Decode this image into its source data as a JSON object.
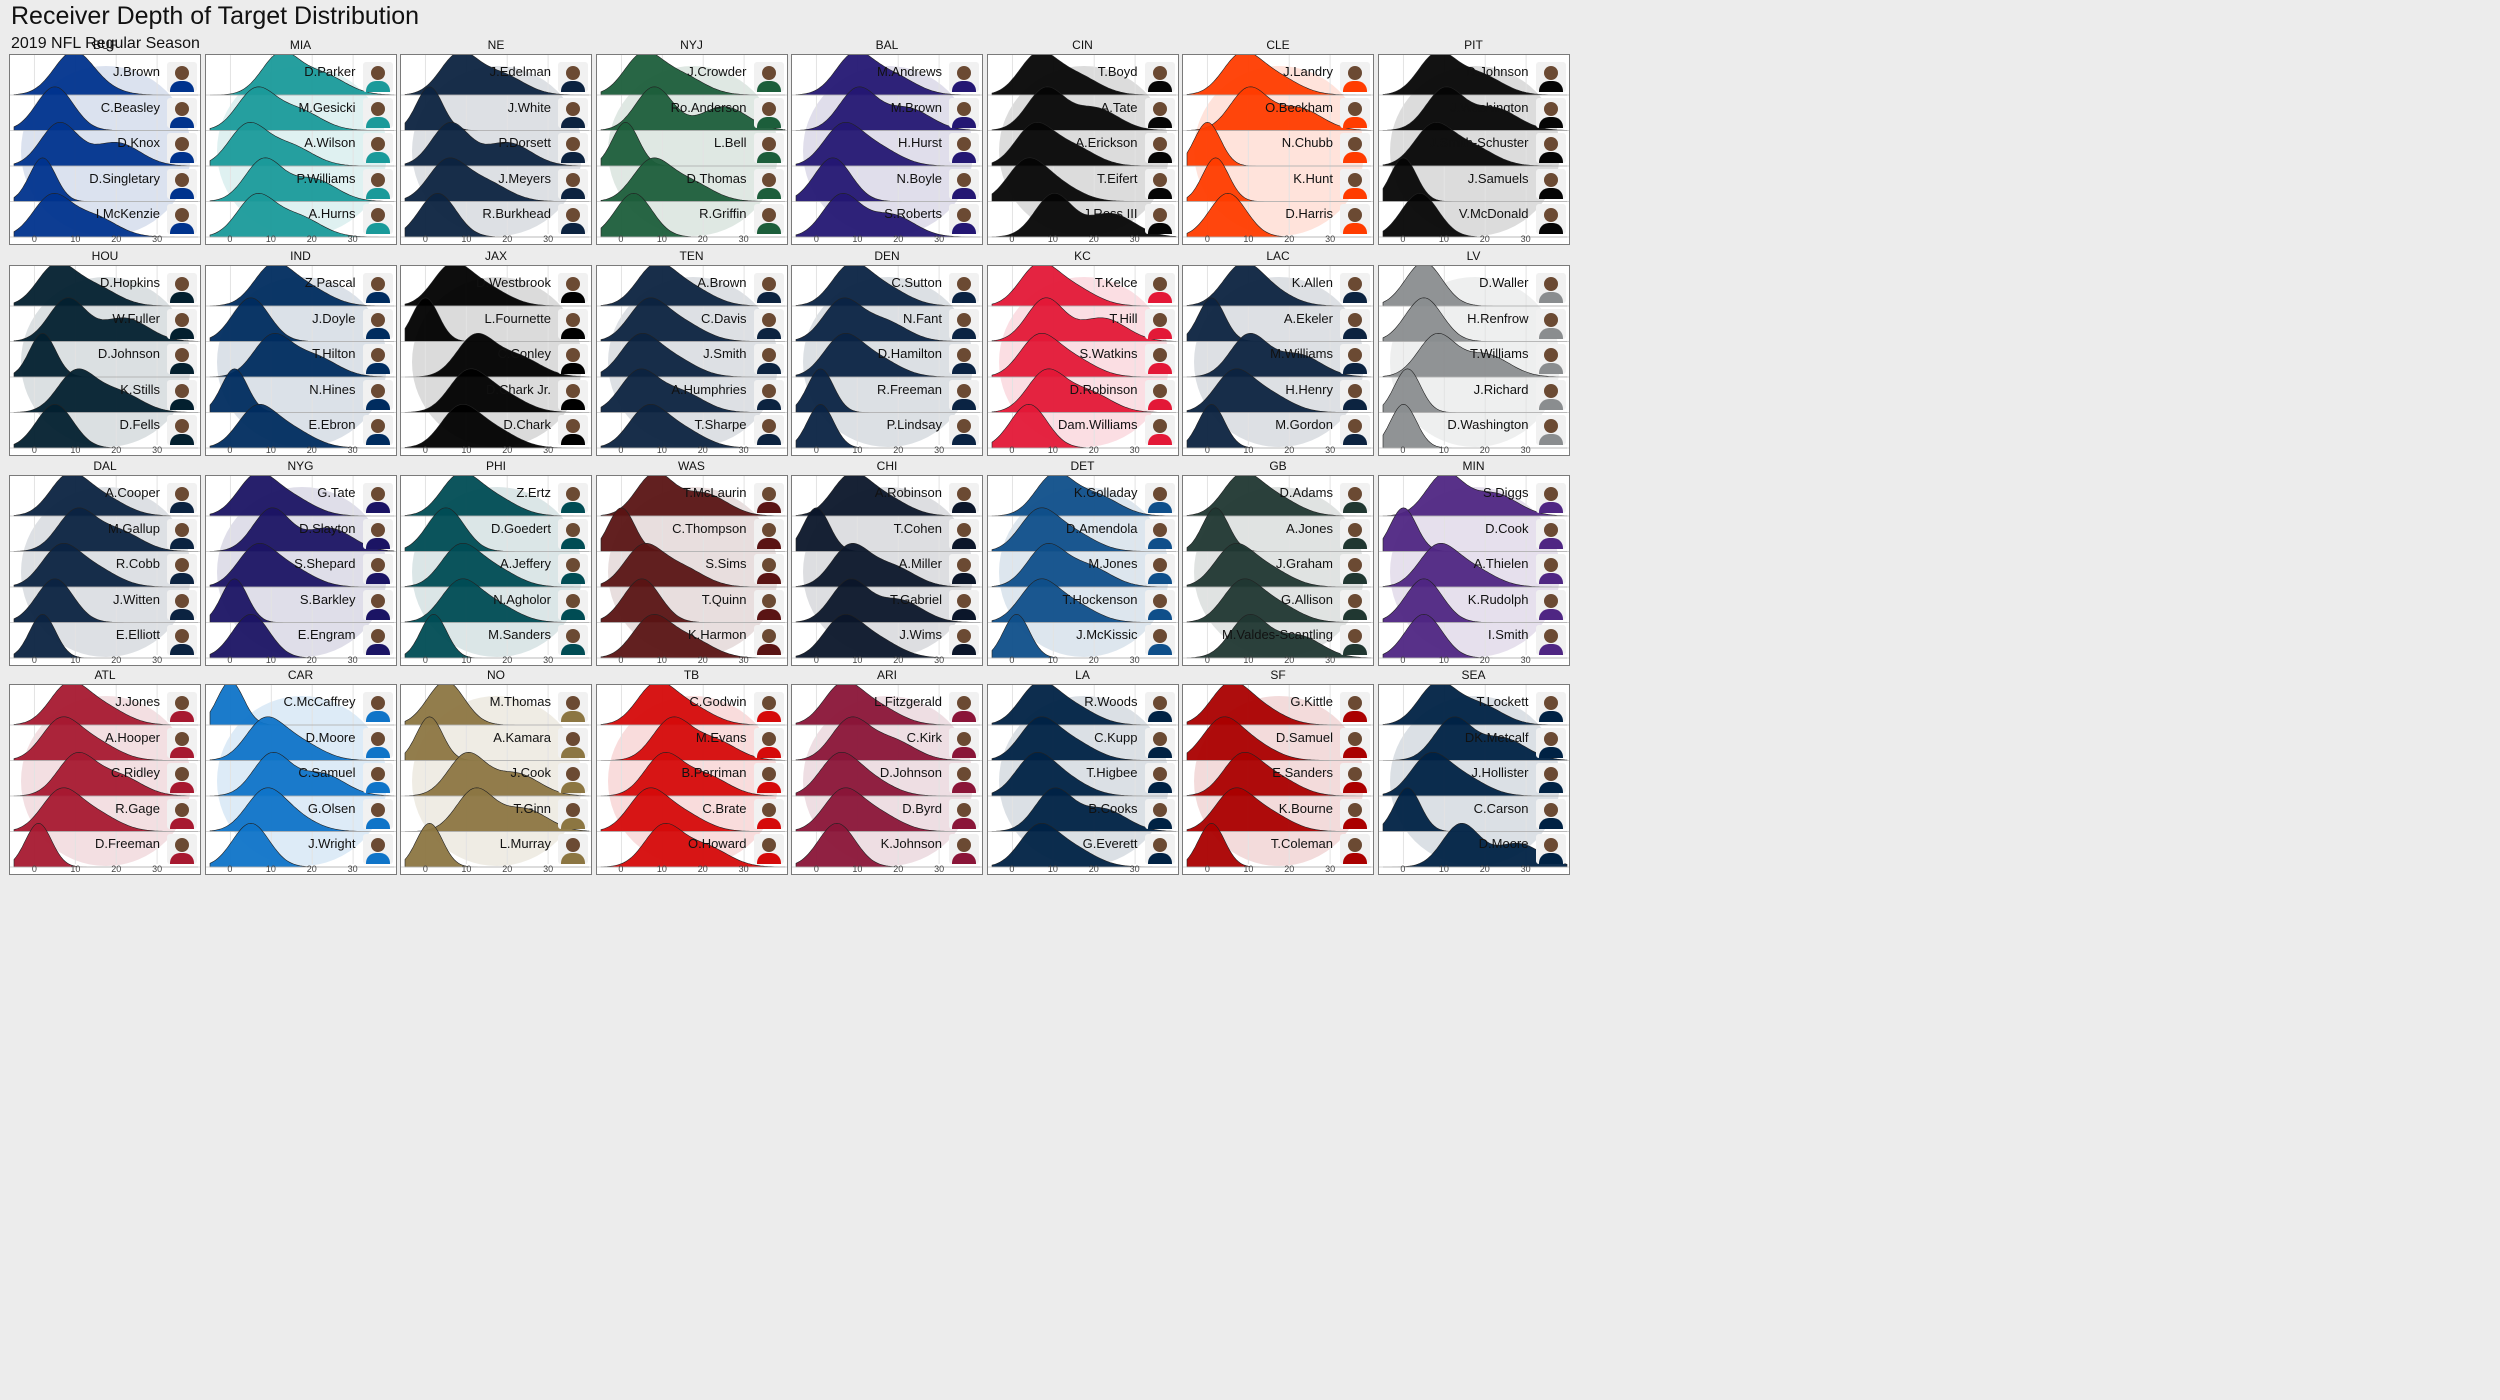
{
  "title": "Receiver Depth of Target Distribution",
  "subtitle": "2019 NFL Regular Season",
  "chart_data": {
    "type": "area",
    "kind": "ridgeline density",
    "xlim": [
      -5,
      40
    ],
    "x_ticks": [
      0,
      10,
      20,
      30
    ],
    "grid": true,
    "teams": [
      {
        "team": "BUF",
        "color": "#00338D",
        "receivers": [
          "J.Brown",
          "C.Beasley",
          "D.Knox",
          "D.Singletary",
          "I.McKenzie"
        ],
        "peaks": [
          [
            9,
            12
          ],
          [
            5
          ],
          [
            6,
            20
          ],
          [
            2
          ],
          [
            4,
            14
          ]
        ]
      },
      {
        "team": "MIA",
        "color": "#1A9A9A",
        "receivers": [
          "D.Parker",
          "M.Gesicki",
          "A.Wilson",
          "P.Williams",
          "A.Hurns"
        ],
        "peaks": [
          [
            12,
            22
          ],
          [
            6,
            16
          ],
          [
            4,
            14
          ],
          [
            8,
            20
          ],
          [
            6,
            16
          ]
        ]
      },
      {
        "team": "NE",
        "color": "#0C2340",
        "receivers": [
          "J.Edelman",
          "J.White",
          "P.Dorsett",
          "J.Meyers",
          "R.Burkhead"
        ],
        "peaks": [
          [
            8,
            18
          ],
          [
            1
          ],
          [
            6,
            20
          ],
          [
            5,
            14
          ],
          [
            3
          ]
        ]
      },
      {
        "team": "NYJ",
        "color": "#1C5E3B",
        "receivers": [
          "J.Crowder",
          "Ro.Anderson",
          "L.Bell",
          "D.Thomas",
          "R.Griffin"
        ],
        "peaks": [
          [
            5,
            14
          ],
          [
            8,
            25
          ],
          [
            1
          ],
          [
            7,
            16
          ],
          [
            3
          ]
        ]
      },
      {
        "team": "BAL",
        "color": "#241773",
        "receivers": [
          "M.Andrews",
          "M.Brown",
          "H.Hurst",
          "N.Boyle",
          "S.Roberts"
        ],
        "peaks": [
          [
            9,
            18
          ],
          [
            10,
            22
          ],
          [
            6,
            14
          ],
          [
            4
          ],
          [
            6,
            18
          ]
        ]
      },
      {
        "team": "CIN",
        "color": "#050505",
        "receivers": [
          "T.Boyd",
          "A.Tate",
          "A.Erickson",
          "T.Eifert",
          "J.Ross III"
        ],
        "peaks": [
          [
            6,
            15
          ],
          [
            8,
            20
          ],
          [
            5,
            14
          ],
          [
            3,
            10
          ],
          [
            10,
            24
          ]
        ]
      },
      {
        "team": "CLE",
        "color": "#FF3C00",
        "receivers": [
          "J.Landry",
          "O.Beckham",
          "N.Chubb",
          "K.Hunt",
          "D.Harris"
        ],
        "peaks": [
          [
            8,
            16
          ],
          [
            10,
            22
          ],
          [
            0
          ],
          [
            2
          ],
          [
            5
          ]
        ]
      },
      {
        "team": "PIT",
        "color": "#050505",
        "receivers": [
          "D.Johnson",
          "J.Washington",
          "J.Smith-Schuster",
          "J.Samuels",
          "V.McDonald"
        ],
        "peaks": [
          [
            8,
            18
          ],
          [
            10,
            22
          ],
          [
            7,
            16
          ],
          [
            0
          ],
          [
            4
          ]
        ]
      }
    ],
    "teams_row2": [
      {
        "team": "HOU",
        "color": "#03202F",
        "receivers": [
          "D.Hopkins",
          "W.Fuller",
          "D.Johnson",
          "K.Stills",
          "D.Fells"
        ],
        "peaks": [
          [
            5,
            14
          ],
          [
            8,
            22
          ],
          [
            2
          ],
          [
            10,
            20
          ],
          [
            5
          ]
        ]
      },
      {
        "team": "IND",
        "color": "#002C5F",
        "receivers": [
          "Z.Pascal",
          "J.Doyle",
          "T.Hilton",
          "N.Hines",
          "E.Ebron"
        ],
        "peaks": [
          [
            10,
            18
          ],
          [
            5
          ],
          [
            10,
            20
          ],
          [
            1
          ],
          [
            6,
            14
          ]
        ]
      },
      {
        "team": "JAX",
        "color": "#000000",
        "receivers": [
          "D.Westbrook",
          "L.Fournette",
          "C.Conley",
          "D.Chark Jr.",
          "D.Chark"
        ],
        "peaks": [
          [
            6,
            14
          ],
          [
            0
          ],
          [
            12,
            22
          ],
          [
            10,
            18
          ],
          [
            8,
            16
          ]
        ]
      },
      {
        "team": "TEN",
        "color": "#0C2340",
        "receivers": [
          "A.Brown",
          "C.Davis",
          "J.Smith",
          "A.Humphries",
          "T.Sharpe"
        ],
        "peaks": [
          [
            8,
            16
          ],
          [
            6,
            14
          ],
          [
            4,
            12
          ],
          [
            4,
            14
          ],
          [
            6,
            14
          ]
        ]
      },
      {
        "team": "DEN",
        "color": "#0A2343",
        "receivers": [
          "C.Sutton",
          "N.Fant",
          "D.Hamilton",
          "R.Freeman",
          "P.Lindsay"
        ],
        "peaks": [
          [
            8,
            16
          ],
          [
            6,
            16
          ],
          [
            6,
            14
          ],
          [
            1
          ],
          [
            1
          ]
        ]
      },
      {
        "team": "KC",
        "color": "#E31837",
        "receivers": [
          "T.Kelce",
          "T.Hill",
          "S.Watkins",
          "D.Robinson",
          "Dam.Williams"
        ],
        "peaks": [
          [
            6,
            14
          ],
          [
            8,
            22
          ],
          [
            6,
            14
          ],
          [
            8,
            18
          ],
          [
            4
          ]
        ]
      },
      {
        "team": "LAC",
        "color": "#0C2340",
        "receivers": [
          "K.Allen",
          "A.Ekeler",
          "M.Williams",
          "H.Henry",
          "M.Gordon"
        ],
        "peaks": [
          [
            8,
            14
          ],
          [
            1
          ],
          [
            10,
            22
          ],
          [
            6,
            14
          ],
          [
            1
          ]
        ]
      },
      {
        "team": "LV",
        "color": "#8A8D8F",
        "receivers": [
          "D.Waller",
          "H.Renfrow",
          "T.Williams",
          "J.Richard",
          "D.Washington"
        ],
        "peaks": [
          [
            5
          ],
          [
            5
          ],
          [
            8,
            20
          ],
          [
            1
          ],
          [
            0
          ]
        ]
      }
    ],
    "teams_row3": [
      {
        "team": "DAL",
        "color": "#0B2341",
        "receivers": [
          "A.Cooper",
          "M.Gallup",
          "R.Cobb",
          "J.Witten",
          "E.Elliott"
        ],
        "peaks": [
          [
            8,
            16
          ],
          [
            10,
            20
          ],
          [
            6,
            14
          ],
          [
            5
          ],
          [
            2
          ]
        ]
      },
      {
        "team": "NYG",
        "color": "#1B1464",
        "receivers": [
          "G.Tate",
          "D.Slayton",
          "S.Shepard",
          "S.Barkley",
          "E.Engram"
        ],
        "peaks": [
          [
            6,
            14
          ],
          [
            10,
            24
          ],
          [
            6,
            14
          ],
          [
            1
          ],
          [
            5
          ]
        ]
      },
      {
        "team": "PHI",
        "color": "#004C54",
        "receivers": [
          "Z.Ertz",
          "D.Goedert",
          "A.Jeffery",
          "N.Agholor",
          "M.Sanders"
        ],
        "peaks": [
          [
            8,
            16
          ],
          [
            5
          ],
          [
            8,
            16
          ],
          [
            8,
            16
          ],
          [
            2
          ]
        ]
      },
      {
        "team": "WAS",
        "color": "#5A1414",
        "receivers": [
          "T.McLaurin",
          "C.Thompson",
          "S.Sims",
          "T.Quinn",
          "K.Harmon"
        ],
        "peaks": [
          [
            8,
            20
          ],
          [
            0
          ],
          [
            5,
            14
          ],
          [
            5
          ],
          [
            7,
            16
          ]
        ]
      },
      {
        "team": "CHI",
        "color": "#0B162A",
        "receivers": [
          "A.Robinson",
          "T.Cohen",
          "A.Miller",
          "T.Gabriel",
          "J.Wims"
        ],
        "peaks": [
          [
            8,
            16
          ],
          [
            0
          ],
          [
            8,
            18
          ],
          [
            8,
            20
          ],
          [
            6,
            14
          ]
        ]
      },
      {
        "team": "DET",
        "color": "#0F4F8A",
        "receivers": [
          "K.Golladay",
          "D.Amendola",
          "M.Jones",
          "T.Hockenson",
          "J.McKissic"
        ],
        "peaks": [
          [
            10,
            20
          ],
          [
            6,
            14
          ],
          [
            8,
            18
          ],
          [
            6,
            14
          ],
          [
            1
          ]
        ]
      },
      {
        "team": "GB",
        "color": "#203731",
        "receivers": [
          "D.Adams",
          "A.Jones",
          "J.Graham",
          "G.Allison",
          "M.Valdes-Scantling"
        ],
        "peaks": [
          [
            8,
            16
          ],
          [
            2
          ],
          [
            6,
            14
          ],
          [
            8,
            16
          ],
          [
            10,
            22
          ]
        ]
      },
      {
        "team": "MIN",
        "color": "#4F2683",
        "receivers": [
          "S.Diggs",
          "D.Cook",
          "A.Thielen",
          "K.Rudolph",
          "I.Smith"
        ],
        "peaks": [
          [
            10,
            22
          ],
          [
            0
          ],
          [
            8,
            16
          ],
          [
            5
          ],
          [
            5
          ]
        ]
      }
    ],
    "teams_row4": [
      {
        "team": "ATL",
        "color": "#A71930",
        "receivers": [
          "J.Jones",
          "A.Hooper",
          "C.Ridley",
          "R.Gage",
          "D.Freeman"
        ],
        "peaks": [
          [
            8,
            16
          ],
          [
            6,
            14
          ],
          [
            10,
            20
          ],
          [
            6,
            14
          ],
          [
            1
          ]
        ]
      },
      {
        "team": "CAR",
        "color": "#0F74C8",
        "receivers": [
          "C.McCaffrey",
          "D.Moore",
          "C.Samuel",
          "G.Olsen",
          "J.Wright"
        ],
        "peaks": [
          [
            0
          ],
          [
            8,
            16
          ],
          [
            10,
            22
          ],
          [
            8,
            14
          ],
          [
            5
          ]
        ]
      },
      {
        "team": "NO",
        "color": "#8C7642",
        "receivers": [
          "M.Thomas",
          "A.Kamara",
          "J.Cook",
          "T.Ginn",
          "L.Murray"
        ],
        "peaks": [
          [
            5
          ],
          [
            1
          ],
          [
            10,
            22
          ],
          [
            12,
            24
          ],
          [
            1
          ]
        ]
      },
      {
        "team": "TB",
        "color": "#D50A0A",
        "receivers": [
          "C.Godwin",
          "M.Evans",
          "B.Perriman",
          "C.Brate",
          "O.Howard"
        ],
        "peaks": [
          [
            8,
            16
          ],
          [
            12,
            22
          ],
          [
            10,
            20
          ],
          [
            6,
            14
          ],
          [
            10,
            20
          ]
        ]
      },
      {
        "team": "ARI",
        "color": "#8A1538",
        "receivers": [
          "L.Fitzgerald",
          "C.Kirk",
          "D.Johnson",
          "D.Byrd",
          "K.Johnson"
        ],
        "peaks": [
          [
            6,
            14
          ],
          [
            8,
            18
          ],
          [
            5,
            12
          ],
          [
            6,
            14
          ],
          [
            5
          ]
        ]
      },
      {
        "team": "LA",
        "color": "#002244",
        "receivers": [
          "R.Woods",
          "C.Kupp",
          "T.Higbee",
          "B.Cooks",
          "G.Everett"
        ],
        "peaks": [
          [
            6,
            14
          ],
          [
            6,
            14
          ],
          [
            5,
            12
          ],
          [
            10,
            22
          ],
          [
            6,
            14
          ]
        ]
      },
      {
        "team": "SF",
        "color": "#AA0000",
        "receivers": [
          "G.Kittle",
          "D.Samuel",
          "E.Sanders",
          "K.Bourne",
          "T.Coleman"
        ],
        "peaks": [
          [
            5,
            12
          ],
          [
            3,
            10
          ],
          [
            8,
            16
          ],
          [
            6,
            14
          ],
          [
            1
          ]
        ]
      },
      {
        "team": "SEA",
        "color": "#002244",
        "receivers": [
          "T.Lockett",
          "DK.Metcalf",
          "J.Hollister",
          "C.Carson",
          "D.Moore"
        ],
        "peaks": [
          [
            8,
            18
          ],
          [
            12,
            24
          ],
          [
            6,
            14
          ],
          [
            1
          ],
          [
            14,
            28
          ]
        ]
      }
    ]
  }
}
